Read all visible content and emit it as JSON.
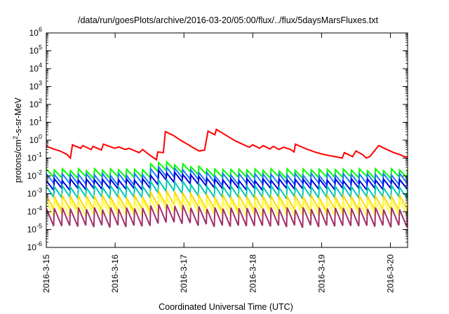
{
  "chart_data": {
    "type": "line",
    "title": "/data/run/goesPlots/archive/2016-03-20/05:00/flux/../flux/5daysMarsFluxes.txt",
    "xlabel": "Coordinated Universal Time (UTC)",
    "ylabel_main": "protons/cm",
    "ylabel_sup": "2",
    "ylabel_rest": "-s-sr-MeV",
    "yscale": "log",
    "ylim_exp": [
      -6,
      6
    ],
    "y_ticks": [
      {
        "base": "10",
        "exp": "-6",
        "e": -6
      },
      {
        "base": "10",
        "exp": "-5",
        "e": -5
      },
      {
        "base": "10",
        "exp": "-4",
        "e": -4
      },
      {
        "base": "10",
        "exp": "-3",
        "e": -3
      },
      {
        "base": "10",
        "exp": "-2",
        "e": -2
      },
      {
        "base": "10",
        "exp": "-1",
        "e": -1
      },
      {
        "base": "10",
        "exp": "0",
        "e": 0
      },
      {
        "base": "10",
        "exp": "1",
        "e": 1
      },
      {
        "base": "10",
        "exp": "2",
        "e": 2
      },
      {
        "base": "10",
        "exp": "3",
        "e": 3
      },
      {
        "base": "10",
        "exp": "4",
        "e": 4
      },
      {
        "base": "10",
        "exp": "5",
        "e": 5
      },
      {
        "base": "10",
        "exp": "6",
        "e": 6
      }
    ],
    "x_range_days": [
      0,
      5.25
    ],
    "x_ticks": [
      {
        "label": "2016-3-15",
        "d": 0
      },
      {
        "label": "2016-3-16",
        "d": 1
      },
      {
        "label": "2016-3-17",
        "d": 2
      },
      {
        "label": "2016-3-18",
        "d": 3
      },
      {
        "label": "2016-3-19",
        "d": 4
      },
      {
        "label": "2016-3-20",
        "d": 5
      }
    ],
    "grid": false,
    "legend": "none",
    "series": [
      {
        "color": "#ff0000",
        "points": [
          [
            0.0,
            0.45
          ],
          [
            0.1,
            0.33
          ],
          [
            0.2,
            0.25
          ],
          [
            0.3,
            0.16
          ],
          [
            0.35,
            0.1
          ],
          [
            0.38,
            0.55
          ],
          [
            0.5,
            0.35
          ],
          [
            0.53,
            0.5
          ],
          [
            0.65,
            0.3
          ],
          [
            0.68,
            0.45
          ],
          [
            0.8,
            0.28
          ],
          [
            0.83,
            0.6
          ],
          [
            0.95,
            0.4
          ],
          [
            1.0,
            0.35
          ],
          [
            1.05,
            0.42
          ],
          [
            1.15,
            0.3
          ],
          [
            1.2,
            0.35
          ],
          [
            1.35,
            0.2
          ],
          [
            1.4,
            0.3
          ],
          [
            1.5,
            0.15
          ],
          [
            1.6,
            0.08
          ],
          [
            1.62,
            0.22
          ],
          [
            1.7,
            0.2
          ],
          [
            1.73,
            3.0
          ],
          [
            1.85,
            1.8
          ],
          [
            1.95,
            1.0
          ],
          [
            2.05,
            0.6
          ],
          [
            2.15,
            0.35
          ],
          [
            2.22,
            0.25
          ],
          [
            2.3,
            0.28
          ],
          [
            2.35,
            3.2
          ],
          [
            2.45,
            2.0
          ],
          [
            2.47,
            4.0
          ],
          [
            2.6,
            2.0
          ],
          [
            2.75,
            0.9
          ],
          [
            2.85,
            0.6
          ],
          [
            2.95,
            0.4
          ],
          [
            3.0,
            0.55
          ],
          [
            3.1,
            0.35
          ],
          [
            3.15,
            0.5
          ],
          [
            3.25,
            0.32
          ],
          [
            3.3,
            0.45
          ],
          [
            3.38,
            0.3
          ],
          [
            3.45,
            0.4
          ],
          [
            3.55,
            0.3
          ],
          [
            3.6,
            0.22
          ],
          [
            3.62,
            0.6
          ],
          [
            3.72,
            0.4
          ],
          [
            3.8,
            0.3
          ],
          [
            3.9,
            0.22
          ],
          [
            4.0,
            0.17
          ],
          [
            4.1,
            0.14
          ],
          [
            4.2,
            0.12
          ],
          [
            4.3,
            0.1
          ],
          [
            4.33,
            0.2
          ],
          [
            4.45,
            0.12
          ],
          [
            4.5,
            0.25
          ],
          [
            4.6,
            0.15
          ],
          [
            4.65,
            0.1
          ],
          [
            4.7,
            0.12
          ],
          [
            4.83,
            0.5
          ],
          [
            4.95,
            0.3
          ],
          [
            5.05,
            0.2
          ],
          [
            5.15,
            0.15
          ],
          [
            5.2,
            0.12
          ],
          [
            5.25,
            0.12
          ]
        ]
      },
      {
        "color": "#00ff00",
        "hi": 0.022,
        "lo": 0.008,
        "n": 45,
        "bump": {
          "start": 1.42,
          "end": 2.4,
          "peak": 0.06,
          "at": 1.6
        }
      },
      {
        "color": "#1e7bff",
        "hi": 0.012,
        "lo": 0.0035,
        "n": 45,
        "bump": {
          "start": 1.42,
          "end": 2.4,
          "peak": 0.032,
          "at": 1.6
        }
      },
      {
        "color": "#0000dd",
        "hi": 0.006,
        "lo": 0.0018,
        "n": 45,
        "bump": {
          "start": 1.42,
          "end": 2.4,
          "peak": 0.018,
          "at": 1.6
        }
      },
      {
        "color": "#00c8b4",
        "hi": 0.0025,
        "lo": 0.0006,
        "n": 45,
        "bump": {
          "start": 1.42,
          "end": 2.4,
          "peak": 0.006,
          "at": 1.6
        }
      },
      {
        "color": "#ffd700",
        "hi": 0.0007,
        "lo": 0.00012,
        "n": 45,
        "bump": {
          "start": 1.42,
          "end": 2.4,
          "peak": 0.0014,
          "at": 1.6
        }
      },
      {
        "color": "#ffff44",
        "hi": 0.0004,
        "lo": 6e-05,
        "n": 45,
        "bump": {
          "start": 1.42,
          "end": 2.4,
          "peak": 0.0008,
          "at": 1.6
        }
      },
      {
        "color": "#a0306a",
        "hi": 0.00015,
        "lo": 1.5e-05,
        "n": 45,
        "bump": {
          "start": 1.42,
          "end": 2.4,
          "peak": 0.00025,
          "at": 1.6
        }
      }
    ]
  }
}
